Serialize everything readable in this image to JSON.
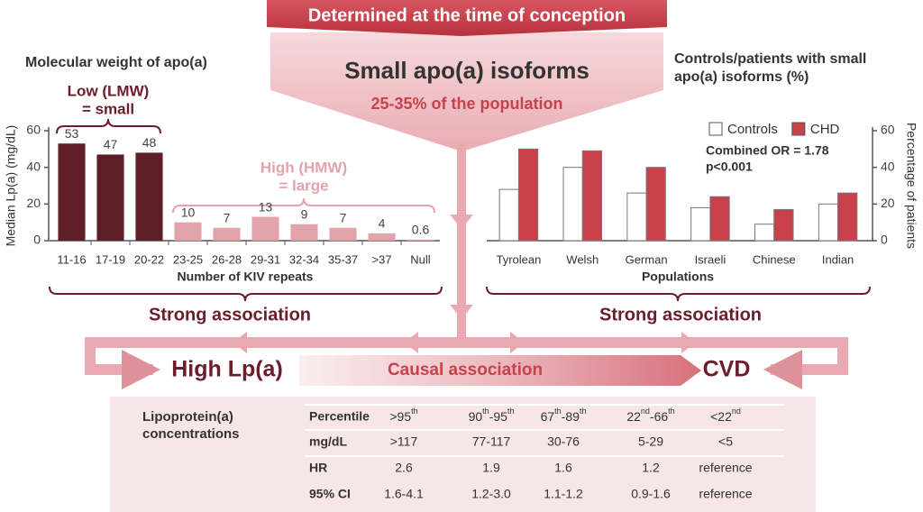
{
  "banner": "Determined at the time of conception",
  "funnel": {
    "title": "Small apo(a) isoforms",
    "subtitle": "25-35% of the population"
  },
  "chart_data": [
    {
      "type": "bar",
      "title": "Molecular weight of apo(a)",
      "categories": [
        "11-16",
        "17-19",
        "20-22",
        "23-25",
        "26-28",
        "29-31",
        "32-34",
        "35-37",
        ">37",
        "Null"
      ],
      "values": [
        53,
        47,
        48,
        10,
        7,
        13,
        9,
        7,
        4,
        0.6
      ],
      "colors": [
        "#5e1f28",
        "#5e1f28",
        "#5e1f28",
        "#e3a3ab",
        "#e3a3ab",
        "#e3a3ab",
        "#e3a3ab",
        "#e3a3ab",
        "#e3a3ab",
        "#e3a3ab"
      ],
      "ylim": [
        0,
        60
      ],
      "yticks": [
        0,
        20,
        40,
        60
      ],
      "ylabel": "Median Lp(a) (mg/dL)",
      "xlabel": "Number of KIV repeats",
      "annotations": [
        "Low (LMW)",
        "= small",
        "High (HMW)",
        "= large"
      ]
    },
    {
      "type": "bar",
      "title": [
        "Controls/patients with small",
        "apo(a) isoforms (%)"
      ],
      "categories": [
        "Tyrolean",
        "Welsh",
        "German",
        "Israeli",
        "Chinese",
        "Indian"
      ],
      "series": [
        {
          "name": "Controls",
          "color": "#ffffff",
          "values": [
            28,
            40,
            26,
            18,
            9,
            20
          ]
        },
        {
          "name": "CHD",
          "color": "#c8414b",
          "values": [
            50,
            49,
            40,
            24,
            17,
            26
          ]
        }
      ],
      "ylim": [
        0,
        60
      ],
      "yticks": [
        0,
        20,
        40,
        60
      ],
      "yaxis": "right",
      "legend": "top-right",
      "ylabel": "Percentage of patients",
      "xlabel": "Populations",
      "annotations": [
        "Combined OR = 1.78",
        "p<0.001"
      ]
    }
  ],
  "associations": [
    "Strong association",
    "Strong association"
  ],
  "flow": {
    "left": "High Lp(a)",
    "middle": "Causal association",
    "right": "CVD"
  },
  "table": {
    "title": [
      "Lipoprotein(a)",
      "concentrations"
    ],
    "header": {
      "label": "Percentile",
      "cells": [
        [
          ">95",
          "th"
        ],
        [
          "90",
          "th",
          "-95",
          "th"
        ],
        [
          "67",
          "th",
          "-89",
          "th"
        ],
        [
          "22",
          "nd",
          "-66",
          "th"
        ],
        [
          "<22",
          "nd"
        ]
      ]
    },
    "rows": [
      [
        "mg/dL",
        ">117",
        "77-117",
        "30-76",
        "5-29",
        "<5"
      ],
      [
        "HR",
        "2.6",
        "1.9",
        "1.6",
        "1.2",
        "reference"
      ],
      [
        "95% CI",
        "1.6-4.1",
        "1.2-3.0",
        "1.1-1.2",
        "0.9-1.6",
        "reference"
      ]
    ]
  }
}
